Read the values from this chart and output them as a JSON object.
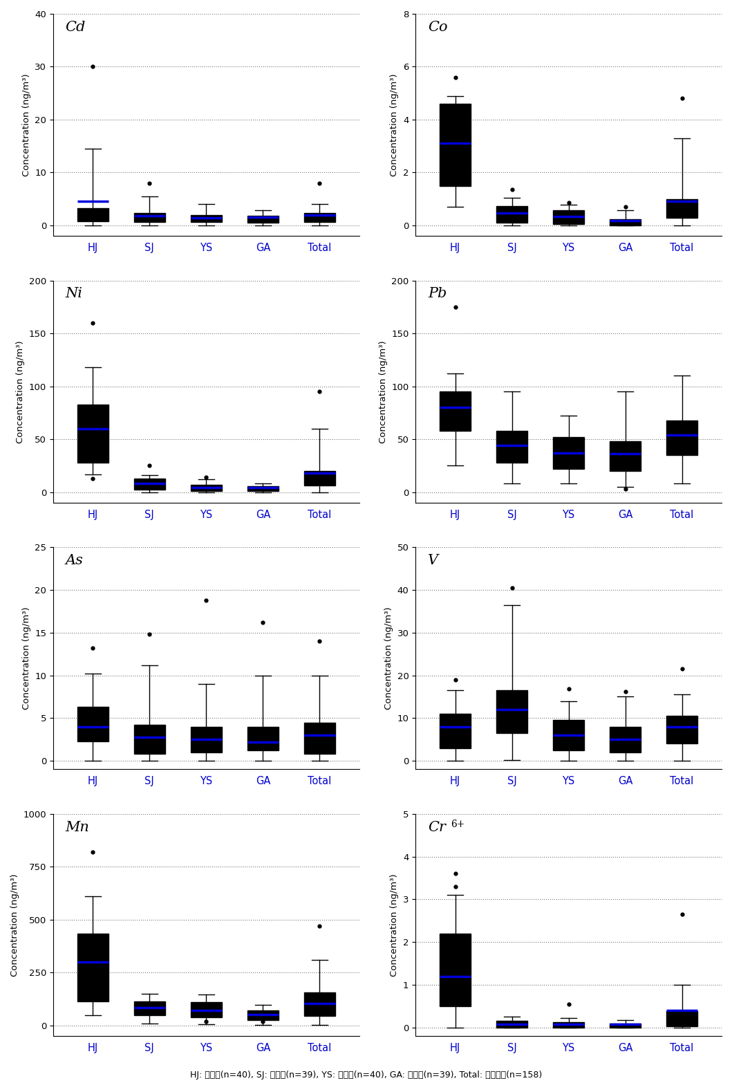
{
  "panels": [
    {
      "label": "Cd",
      "ylabel": "Concentration (ng/m³)",
      "ylim": [
        -2,
        40
      ],
      "yticks": [
        0,
        10,
        20,
        30,
        40
      ],
      "groups": [
        "HJ",
        "SJ",
        "YS",
        "GA",
        "Total"
      ],
      "boxes": [
        {
          "q1": 0.8,
          "median": 1.8,
          "q3": 3.2,
          "whislo": 0.0,
          "whishi": 14.5,
          "mean": 4.5,
          "fliers": [
            30.0
          ]
        },
        {
          "q1": 0.6,
          "median": 1.5,
          "q3": 2.4,
          "whislo": 0.0,
          "whishi": 5.5,
          "mean": 1.8,
          "fliers": [
            8.0
          ]
        },
        {
          "q1": 0.6,
          "median": 1.2,
          "q3": 2.0,
          "whislo": 0.0,
          "whishi": 4.0,
          "mean": 1.4,
          "fliers": []
        },
        {
          "q1": 0.5,
          "median": 1.0,
          "q3": 1.8,
          "whislo": 0.0,
          "whishi": 2.8,
          "mean": 1.5,
          "fliers": []
        },
        {
          "q1": 0.6,
          "median": 1.5,
          "q3": 2.3,
          "whislo": 0.0,
          "whishi": 4.0,
          "mean": 2.0,
          "fliers": [
            8.0
          ]
        }
      ]
    },
    {
      "label": "Co",
      "ylabel": "Concentration (ng/m³)",
      "ylim": [
        -0.4,
        8
      ],
      "yticks": [
        0,
        2,
        4,
        6,
        8
      ],
      "groups": [
        "HJ",
        "SJ",
        "YS",
        "GA",
        "Total"
      ],
      "boxes": [
        {
          "q1": 1.5,
          "median": 3.0,
          "q3": 4.6,
          "whislo": 0.7,
          "whishi": 4.9,
          "mean": 3.1,
          "fliers": [
            5.6
          ]
        },
        {
          "q1": 0.1,
          "median": 0.45,
          "q3": 0.72,
          "whislo": 0.0,
          "whishi": 1.05,
          "mean": 0.48,
          "fliers": [
            1.35
          ]
        },
        {
          "q1": 0.05,
          "median": 0.35,
          "q3": 0.58,
          "whislo": 0.0,
          "whishi": 0.78,
          "mean": 0.35,
          "fliers": [
            0.85
          ]
        },
        {
          "q1": 0.0,
          "median": 0.12,
          "q3": 0.22,
          "whislo": 0.0,
          "whishi": 0.58,
          "mean": 0.18,
          "fliers": [
            0.7
          ]
        },
        {
          "q1": 0.28,
          "median": 0.9,
          "q3": 1.0,
          "whislo": 0.0,
          "whishi": 3.3,
          "mean": 0.9,
          "fliers": [
            4.8
          ]
        }
      ]
    },
    {
      "label": "Ni",
      "ylabel": "Concentration (ng/m³)",
      "ylim": [
        -10,
        200
      ],
      "yticks": [
        0,
        50,
        100,
        150,
        200
      ],
      "groups": [
        "HJ",
        "SJ",
        "YS",
        "GA",
        "Total"
      ],
      "boxes": [
        {
          "q1": 28.0,
          "median": 50.0,
          "q3": 83.0,
          "whislo": 17.0,
          "whishi": 118.0,
          "mean": 60.0,
          "fliers": [
            160.0,
            13.0
          ]
        },
        {
          "q1": 2.0,
          "median": 8.0,
          "q3": 13.0,
          "whislo": 0.0,
          "whishi": 16.0,
          "mean": 8.0,
          "fliers": [
            25.0
          ]
        },
        {
          "q1": 1.0,
          "median": 4.5,
          "q3": 7.0,
          "whislo": 0.0,
          "whishi": 12.0,
          "mean": 4.5,
          "fliers": [
            14.0
          ]
        },
        {
          "q1": 1.0,
          "median": 3.5,
          "q3": 5.5,
          "whislo": 0.0,
          "whishi": 8.0,
          "mean": 4.0,
          "fliers": []
        },
        {
          "q1": 6.0,
          "median": 10.0,
          "q3": 20.0,
          "whislo": 0.0,
          "whishi": 60.0,
          "mean": 18.0,
          "fliers": [
            95.0
          ]
        }
      ]
    },
    {
      "label": "Pb",
      "ylabel": "Concentration (ng/m³)",
      "ylim": [
        -10,
        200
      ],
      "yticks": [
        0,
        50,
        100,
        150,
        200
      ],
      "groups": [
        "HJ",
        "SJ",
        "YS",
        "GA",
        "Total"
      ],
      "boxes": [
        {
          "q1": 58.0,
          "median": 80.0,
          "q3": 95.0,
          "whislo": 25.0,
          "whishi": 112.0,
          "mean": 80.0,
          "fliers": [
            175.0
          ]
        },
        {
          "q1": 28.0,
          "median": 42.0,
          "q3": 58.0,
          "whislo": 8.0,
          "whishi": 95.0,
          "mean": 44.0,
          "fliers": []
        },
        {
          "q1": 22.0,
          "median": 37.0,
          "q3": 52.0,
          "whislo": 8.0,
          "whishi": 72.0,
          "mean": 37.0,
          "fliers": []
        },
        {
          "q1": 20.0,
          "median": 35.0,
          "q3": 48.0,
          "whislo": 5.0,
          "whishi": 95.0,
          "mean": 36.0,
          "fliers": [
            3.0
          ]
        },
        {
          "q1": 35.0,
          "median": 52.0,
          "q3": 68.0,
          "whislo": 8.0,
          "whishi": 110.0,
          "mean": 54.0,
          "fliers": []
        }
      ]
    },
    {
      "label": "As",
      "ylabel": "Concentration (ng/m³)",
      "ylim": [
        -1,
        25
      ],
      "yticks": [
        0,
        5,
        10,
        15,
        20,
        25
      ],
      "groups": [
        "HJ",
        "SJ",
        "YS",
        "GA",
        "Total"
      ],
      "boxes": [
        {
          "q1": 2.3,
          "median": 3.5,
          "q3": 6.3,
          "whislo": 0.0,
          "whishi": 10.2,
          "mean": 4.0,
          "fliers": [
            13.2
          ]
        },
        {
          "q1": 0.8,
          "median": 1.1,
          "q3": 4.2,
          "whislo": 0.0,
          "whishi": 11.2,
          "mean": 2.8,
          "fliers": [
            14.8
          ]
        },
        {
          "q1": 1.0,
          "median": 2.5,
          "q3": 4.0,
          "whislo": 0.0,
          "whishi": 9.0,
          "mean": 2.5,
          "fliers": [
            18.8
          ]
        },
        {
          "q1": 1.2,
          "median": 2.2,
          "q3": 4.0,
          "whislo": 0.0,
          "whishi": 10.0,
          "mean": 2.2,
          "fliers": [
            16.2
          ]
        },
        {
          "q1": 0.8,
          "median": 2.8,
          "q3": 4.5,
          "whislo": 0.0,
          "whishi": 10.0,
          "mean": 3.0,
          "fliers": [
            14.0
          ]
        }
      ]
    },
    {
      "label": "V",
      "ylabel": "Concentration (ng/m³)",
      "ylim": [
        -2,
        50
      ],
      "yticks": [
        0,
        10,
        20,
        30,
        40,
        50
      ],
      "groups": [
        "HJ",
        "SJ",
        "YS",
        "GA",
        "Total"
      ],
      "boxes": [
        {
          "q1": 3.0,
          "median": 7.0,
          "q3": 11.0,
          "whislo": 0.0,
          "whishi": 16.5,
          "mean": 8.0,
          "fliers": [
            19.0
          ]
        },
        {
          "q1": 6.5,
          "median": 7.5,
          "q3": 16.5,
          "whislo": 0.2,
          "whishi": 36.5,
          "mean": 12.0,
          "fliers": [
            40.5
          ]
        },
        {
          "q1": 2.5,
          "median": 5.5,
          "q3": 9.5,
          "whislo": 0.0,
          "whishi": 14.0,
          "mean": 6.0,
          "fliers": [
            16.8
          ]
        },
        {
          "q1": 2.0,
          "median": 4.5,
          "q3": 8.0,
          "whislo": 0.0,
          "whishi": 15.0,
          "mean": 5.0,
          "fliers": [
            16.2
          ]
        },
        {
          "q1": 4.0,
          "median": 7.0,
          "q3": 10.5,
          "whislo": 0.0,
          "whishi": 15.5,
          "mean": 8.0,
          "fliers": [
            21.5
          ]
        }
      ]
    },
    {
      "label": "Mn",
      "ylabel": "Concentration (ng/m³)",
      "ylim": [
        -50,
        1000
      ],
      "yticks": [
        0,
        250,
        500,
        750,
        1000
      ],
      "groups": [
        "HJ",
        "SJ",
        "YS",
        "GA",
        "Total"
      ],
      "boxes": [
        {
          "q1": 115.0,
          "median": 285.0,
          "q3": 435.0,
          "whislo": 50.0,
          "whishi": 610.0,
          "mean": 300.0,
          "fliers": [
            820.0
          ]
        },
        {
          "q1": 50.0,
          "median": 80.0,
          "q3": 115.0,
          "whislo": 10.0,
          "whishi": 150.0,
          "mean": 85.0,
          "fliers": []
        },
        {
          "q1": 40.0,
          "median": 70.0,
          "q3": 110.0,
          "whislo": 5.0,
          "whishi": 145.0,
          "mean": 72.0,
          "fliers": [
            20.0
          ]
        },
        {
          "q1": 25.0,
          "median": 50.0,
          "q3": 72.0,
          "whislo": 3.0,
          "whishi": 98.0,
          "mean": 52.0,
          "fliers": [
            20.0
          ]
        },
        {
          "q1": 45.0,
          "median": 80.0,
          "q3": 155.0,
          "whislo": 3.0,
          "whishi": 310.0,
          "mean": 105.0,
          "fliers": [
            470.0
          ]
        }
      ]
    },
    {
      "label": "Cr",
      "label_super": "6+",
      "ylabel": "Concentration (ng/m³)",
      "ylim": [
        -0.2,
        5
      ],
      "yticks": [
        0,
        1,
        2,
        3,
        4,
        5
      ],
      "groups": [
        "HJ",
        "SJ",
        "YS",
        "GA",
        "Total"
      ],
      "boxes": [
        {
          "q1": 0.5,
          "median": 0.85,
          "q3": 2.2,
          "whislo": 0.0,
          "whishi": 3.1,
          "mean": 1.2,
          "fliers": [
            3.6,
            3.3
          ]
        },
        {
          "q1": 0.0,
          "median": 0.05,
          "q3": 0.15,
          "whislo": 0.0,
          "whishi": 0.25,
          "mean": 0.08,
          "fliers": []
        },
        {
          "q1": 0.0,
          "median": 0.05,
          "q3": 0.12,
          "whislo": 0.0,
          "whishi": 0.22,
          "mean": 0.08,
          "fliers": [
            0.55
          ]
        },
        {
          "q1": 0.0,
          "median": 0.05,
          "q3": 0.1,
          "whislo": 0.0,
          "whishi": 0.18,
          "mean": 0.07,
          "fliers": []
        },
        {
          "q1": 0.03,
          "median": 0.12,
          "q3": 0.38,
          "whislo": 0.0,
          "whishi": 1.0,
          "mean": 0.4,
          "fliers": [
            2.65
          ]
        }
      ]
    }
  ],
  "box_facecolor": "#e8e8e8",
  "box_edgecolor": "#000000",
  "median_color": "#000000",
  "mean_color": "#0000dd",
  "flier_color": "#000000",
  "whisker_color": "#000000",
  "cap_color": "#000000",
  "grid_color": "#777777",
  "xtick_color": "#0000cc",
  "caption": "HJ: 학장동(n=40), SJ: 수정동(n=39), YS: 연산동(n=40), GA: 광안동(n=39), Total: 전체자료(n=158)"
}
